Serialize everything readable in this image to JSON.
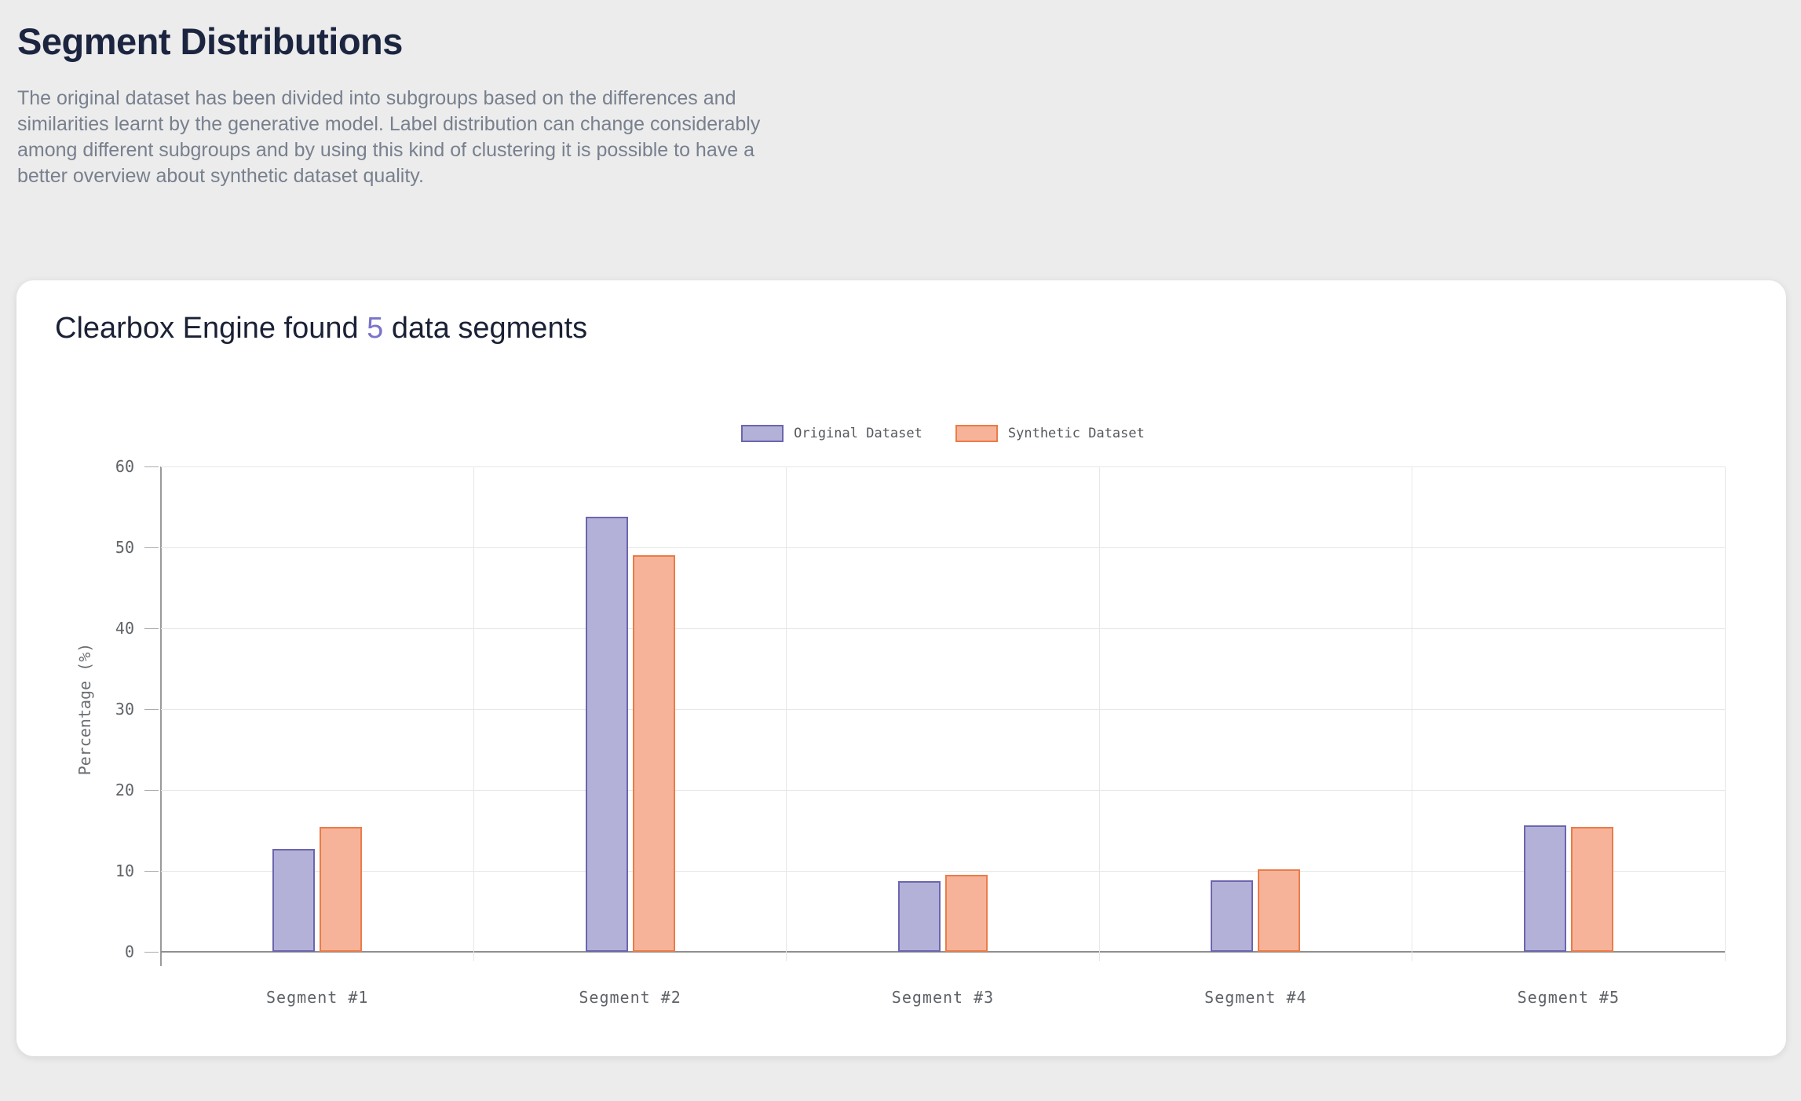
{
  "page": {
    "title": "Segment Distributions",
    "description": "The original dataset has been divided into subgroups based on the differences and similarities learnt by the generative model. Label distribution can change considerably among different subgroups and by using this kind of clustering it is possible to have a better overview about synthetic dataset quality.",
    "background_color": "#ececec"
  },
  "card": {
    "title_prefix": "Clearbox Engine found ",
    "segment_count": "5",
    "title_suffix": " data segments",
    "accent_color": "#7a74cc"
  },
  "chart_data": {
    "type": "bar",
    "categories": [
      "Segment #1",
      "Segment #2",
      "Segment #3",
      "Segment #4",
      "Segment #5"
    ],
    "series": [
      {
        "name": "Original Dataset",
        "values": [
          12.7,
          53.8,
          8.7,
          8.8,
          15.6
        ],
        "fill": "#b4b1d8",
        "stroke": "#6b66af"
      },
      {
        "name": "Synthetic Dataset",
        "values": [
          15.4,
          49.0,
          9.5,
          10.2,
          15.4
        ],
        "fill": "#f7b399",
        "stroke": "#ea7c49"
      }
    ],
    "xlabel": "",
    "ylabel": "Percentage (%)",
    "ylim": [
      0,
      60
    ],
    "yticks": [
      0,
      10,
      20,
      30,
      40,
      50,
      60
    ],
    "grid": true,
    "legend_position": "top-center"
  }
}
